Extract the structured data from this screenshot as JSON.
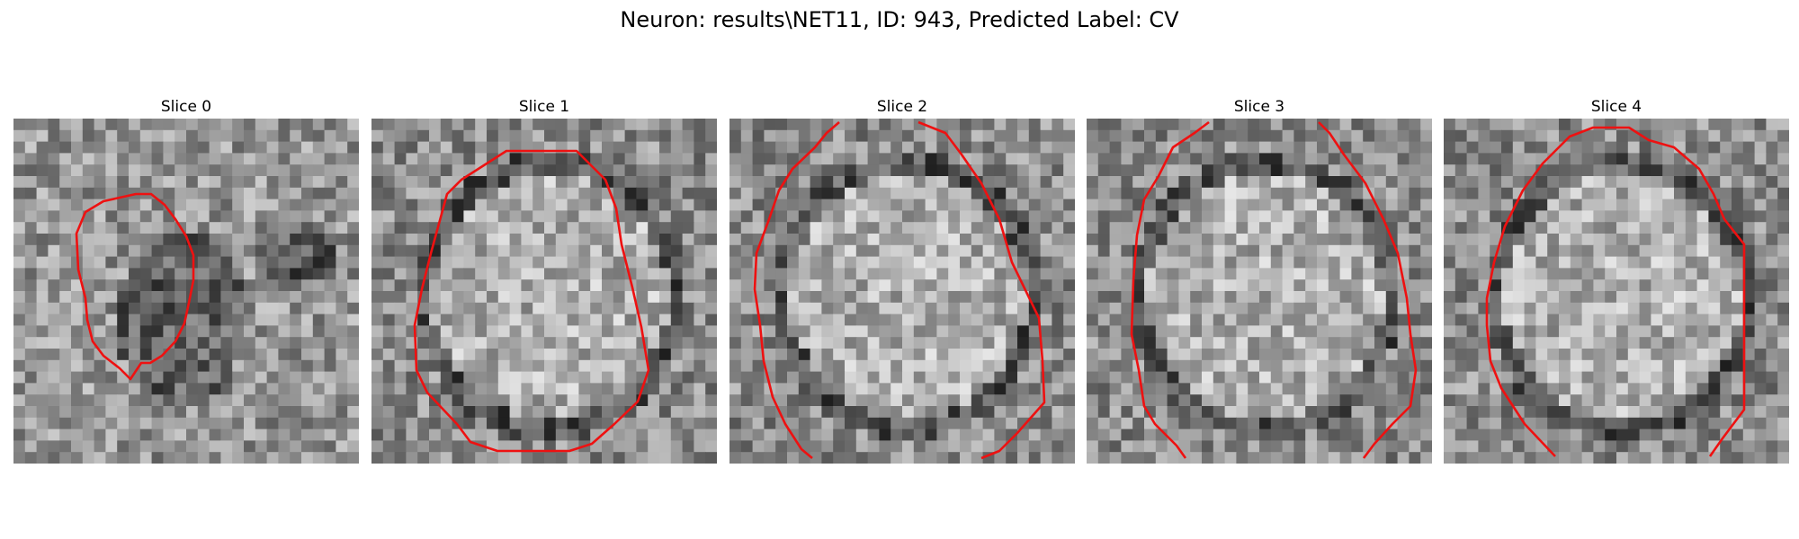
{
  "figure": {
    "title": "Neuron: results\\NET11, ID: 943, Predicted Label: CV"
  },
  "panels": [
    {
      "title": "Slice 0",
      "seed": 11,
      "cell": "dark"
    },
    {
      "title": "Slice 1",
      "seed": 23,
      "cell": "bright"
    },
    {
      "title": "Slice 2",
      "seed": 37,
      "cell": "bright"
    },
    {
      "title": "Slice 3",
      "seed": 53,
      "cell": "bright"
    },
    {
      "title": "Slice 4",
      "seed": 71,
      "cell": "bright"
    }
  ],
  "colors": {
    "contour": "#ee1111"
  }
}
